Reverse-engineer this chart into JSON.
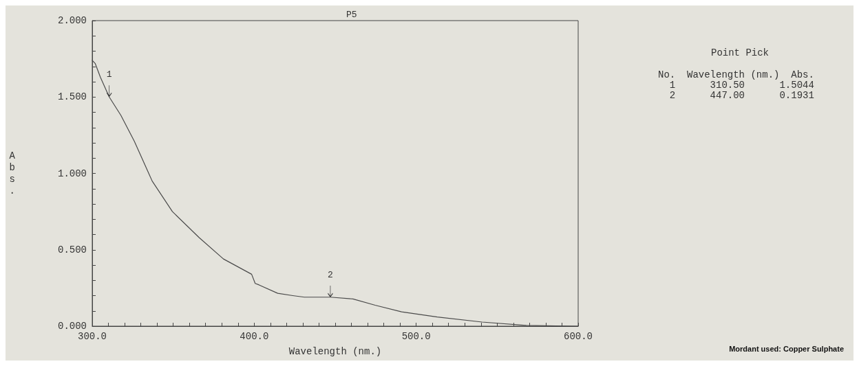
{
  "chart_data": {
    "type": "line",
    "title": "P5",
    "xlabel": "Wavelength (nm.)",
    "ylabel": "Abs.",
    "x": [
      300,
      301.8,
      305,
      310.5,
      317.7,
      326,
      337,
      349.5,
      366,
      381,
      398.4,
      400.6,
      403,
      414.5,
      423.8,
      431,
      447,
      461,
      474.7,
      491,
      513,
      540.7,
      568,
      598,
      600
    ],
    "series": [
      {
        "color": "#4a4a4a",
        "values": [
          1.74,
          1.72,
          1.63,
          1.5,
          1.38,
          1.21,
          0.95,
          0.75,
          0.58,
          0.44,
          0.34,
          0.28,
          0.27,
          0.215,
          0.2,
          0.19,
          0.19,
          0.178,
          0.137,
          0.094,
          0.06,
          0.027,
          0.005,
          0.0,
          0.0
        ]
      }
    ],
    "xlim": [
      300,
      600
    ],
    "xticks": [
      {
        "value": 300,
        "label": "300.0"
      },
      {
        "value": 310,
        "label": null
      },
      {
        "value": 320,
        "label": null
      },
      {
        "value": 330,
        "label": null
      },
      {
        "value": 340,
        "label": null
      },
      {
        "value": 350,
        "label": null
      },
      {
        "value": 360,
        "label": null
      },
      {
        "value": 370,
        "label": null
      },
      {
        "value": 380,
        "label": null
      },
      {
        "value": 390,
        "label": null
      },
      {
        "value": 400,
        "label": "400.0"
      },
      {
        "value": 410,
        "label": null
      },
      {
        "value": 420,
        "label": null
      },
      {
        "value": 430,
        "label": null
      },
      {
        "value": 440,
        "label": null
      },
      {
        "value": 450,
        "label": null
      },
      {
        "value": 460,
        "label": null
      },
      {
        "value": 470,
        "label": null
      },
      {
        "value": 480,
        "label": null
      },
      {
        "value": 490,
        "label": null
      },
      {
        "value": 500,
        "label": "500.0"
      },
      {
        "value": 510,
        "label": null
      },
      {
        "value": 520,
        "label": null
      },
      {
        "value": 530,
        "label": null
      },
      {
        "value": 540,
        "label": null
      },
      {
        "value": 550,
        "label": null
      },
      {
        "value": 560,
        "label": null
      },
      {
        "value": 570,
        "label": null
      },
      {
        "value": 580,
        "label": null
      },
      {
        "value": 590,
        "label": null
      },
      {
        "value": 600,
        "label": "600.0"
      }
    ],
    "ylim": [
      0,
      2
    ],
    "yticks": [
      {
        "value": 0,
        "label": "0.000"
      },
      {
        "value": 0.1,
        "label": null
      },
      {
        "value": 0.2,
        "label": null
      },
      {
        "value": 0.3,
        "label": null
      },
      {
        "value": 0.4,
        "label": null
      },
      {
        "value": 0.5,
        "label": "0.500"
      },
      {
        "value": 0.6,
        "label": null
      },
      {
        "value": 0.7,
        "label": null
      },
      {
        "value": 0.8,
        "label": null
      },
      {
        "value": 0.9,
        "label": null
      },
      {
        "value": 1,
        "label": "1.000"
      },
      {
        "value": 1.1,
        "label": null
      },
      {
        "value": 1.2,
        "label": null
      },
      {
        "value": 1.3,
        "label": null
      },
      {
        "value": 1.4,
        "label": null
      },
      {
        "value": 1.5,
        "label": "1.500"
      },
      {
        "value": 1.6,
        "label": null
      },
      {
        "value": 1.7,
        "label": null
      },
      {
        "value": 1.8,
        "label": null
      },
      {
        "value": 1.9,
        "label": null
      },
      {
        "value": 2,
        "label": "2.000"
      }
    ],
    "grid": false,
    "marker": "none",
    "line_style": "solid",
    "annotations": [
      {
        "text": "1",
        "x": 310.5,
        "y": 1.5044
      },
      {
        "text": "2",
        "x": 447,
        "y": 0.1931
      },
      "Point Pick",
      "No.  Wavelength (nm.)  Abs.",
      "  1      310.50      1.5044",
      "  2      447.00      0.1931",
      "Mordant used: Copper Sulphate"
    ]
  }
}
